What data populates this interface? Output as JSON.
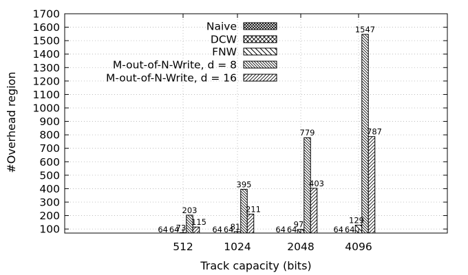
{
  "chart_data": {
    "type": "bar",
    "xlabel": "Track capacity (bits)",
    "ylabel": "#Overhead region",
    "ylim": [
      70,
      1700
    ],
    "yticks": [
      100,
      200,
      300,
      400,
      500,
      600,
      700,
      800,
      900,
      1000,
      1100,
      1200,
      1300,
      1400,
      1500,
      1600,
      1700
    ],
    "categories": [
      "512",
      "1024",
      "2048",
      "4096"
    ],
    "grid": true,
    "legend_position": "top-center",
    "series": [
      {
        "name": "Naive",
        "pattern": "crosshatch-dense",
        "values": [
          64,
          64,
          64,
          64
        ],
        "labels": [
          "64",
          "64",
          "64",
          "64"
        ]
      },
      {
        "name": "DCW",
        "pattern": "crosshatch",
        "values": [
          64,
          64,
          64,
          64
        ],
        "labels": [
          "64",
          "64",
          "64",
          "64"
        ]
      },
      {
        "name": "FNW",
        "pattern": "diag-back",
        "values": [
          73,
          81,
          97,
          129
        ],
        "labels": [
          "73",
          "81",
          "97",
          "129"
        ]
      },
      {
        "name": "M-out-of-N-Write, d = 8",
        "pattern": "diag-back-dense",
        "values": [
          203,
          395,
          779,
          1547
        ],
        "labels": [
          "203",
          "395",
          "779",
          "1547"
        ]
      },
      {
        "name": "M-out-of-N-Write, d = 16",
        "pattern": "diag-fwd",
        "values": [
          115,
          211,
          403,
          787
        ],
        "labels": [
          "115",
          "211",
          "403",
          "787"
        ]
      }
    ]
  }
}
